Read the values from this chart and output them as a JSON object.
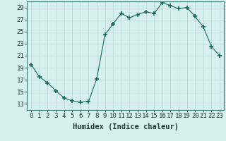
{
  "x": [
    0,
    1,
    2,
    3,
    4,
    5,
    6,
    7,
    8,
    9,
    10,
    11,
    12,
    13,
    14,
    15,
    16,
    17,
    18,
    19,
    20,
    21,
    22,
    23
  ],
  "y": [
    19.5,
    17.5,
    16.5,
    15.2,
    14.0,
    13.5,
    13.3,
    13.4,
    17.2,
    24.5,
    26.3,
    28.0,
    27.3,
    27.8,
    28.3,
    28.0,
    29.8,
    29.3,
    28.8,
    29.0,
    27.5,
    25.8,
    22.5,
    21.0
  ],
  "line_color": "#1a6b5a",
  "marker": "+",
  "marker_size": 4,
  "bg_color": "#d6f0ee",
  "grid_color": "#b8d8d4",
  "axis_color": "#3a7a70",
  "xlabel": "Humidex (Indice chaleur)",
  "xlim": [
    -0.5,
    23.5
  ],
  "ylim": [
    12,
    30
  ],
  "yticks": [
    13,
    15,
    17,
    19,
    21,
    23,
    25,
    27,
    29
  ],
  "xticks": [
    0,
    1,
    2,
    3,
    4,
    5,
    6,
    7,
    8,
    9,
    10,
    11,
    12,
    13,
    14,
    15,
    16,
    17,
    18,
    19,
    20,
    21,
    22,
    23
  ],
  "xlabel_fontsize": 7.5,
  "tick_fontsize": 6.5
}
